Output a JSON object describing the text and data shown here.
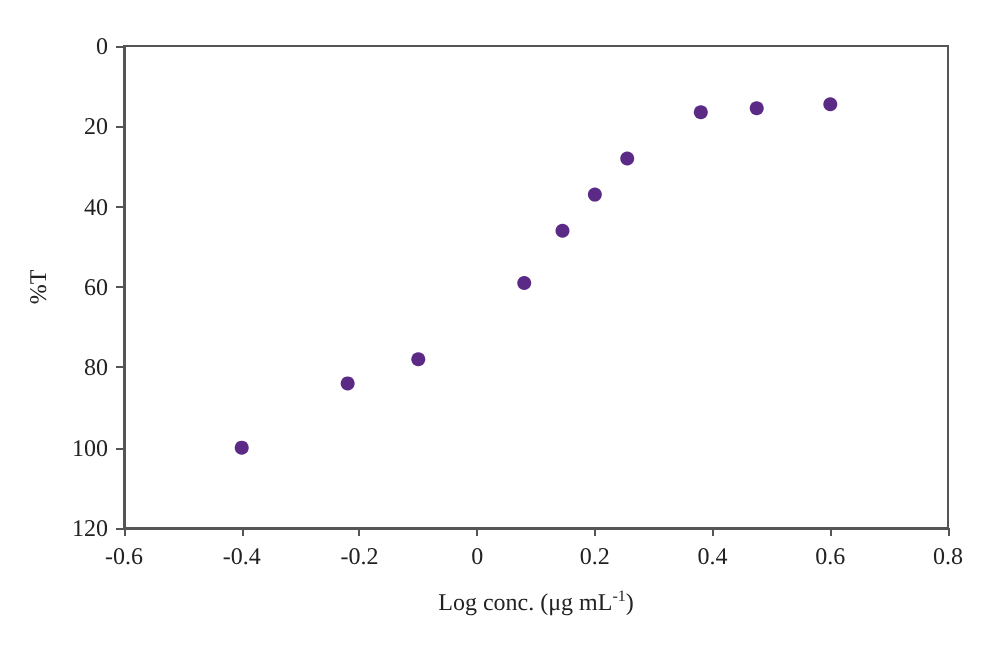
{
  "chart_data": {
    "type": "scatter",
    "xlabel": "Log conc. (μg mL$^{-1}$)",
    "ylabel": "%T",
    "x": [
      -0.4,
      -0.22,
      -0.1,
      0.08,
      0.145,
      0.2,
      0.255,
      0.38,
      0.475,
      0.6
    ],
    "series": [
      {
        "color": "#5b2a86",
        "values": [
          100,
          84,
          78,
          59,
          46,
          37,
          28,
          16.5,
          15.5,
          14.5
        ]
      }
    ],
    "xlim": [
      -0.6,
      0.8
    ],
    "xticks": [
      -0.6,
      -0.4,
      -0.2,
      0,
      0.2,
      0.4,
      0.6,
      0.8
    ],
    "ylim": [
      120,
      0
    ],
    "yticks": [
      0,
      20,
      40,
      60,
      80,
      100,
      120
    ],
    "marker": "circle",
    "grid": false
  }
}
